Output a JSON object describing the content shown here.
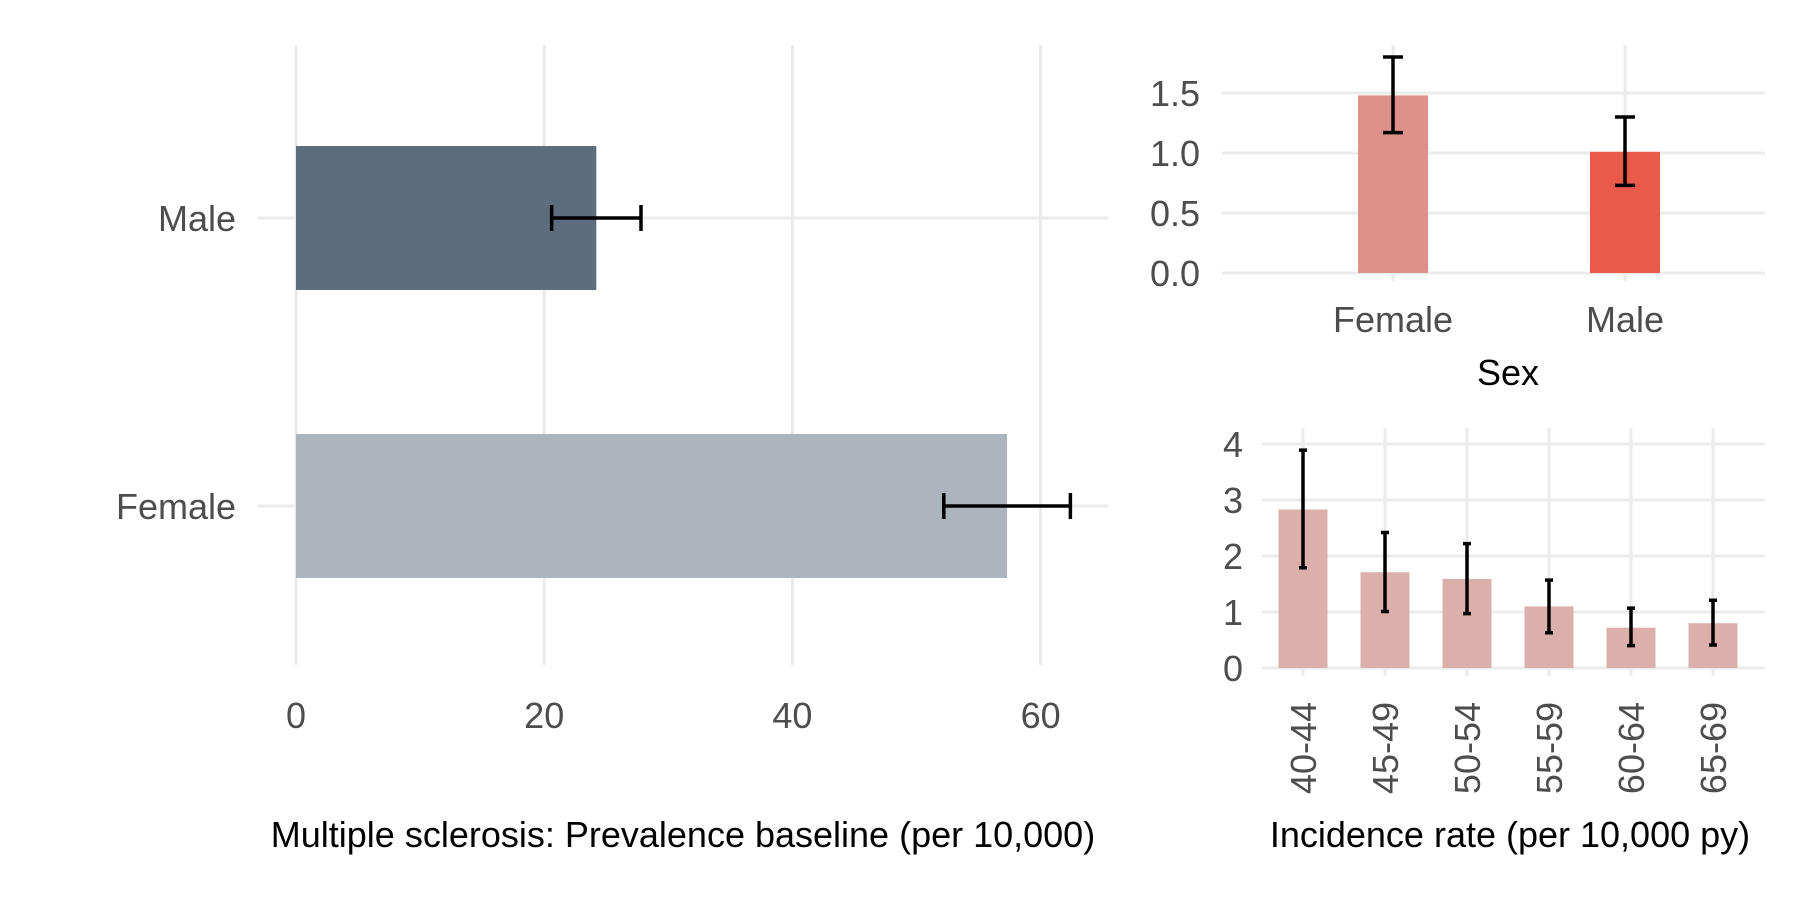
{
  "chart_data": [
    {
      "id": "prevalence",
      "type": "bar",
      "orientation": "horizontal",
      "categories": [
        "Male",
        "Female"
      ],
      "values": [
        24.2,
        57.3
      ],
      "error_low": [
        20.6,
        52.2
      ],
      "error_high": [
        27.8,
        62.4
      ],
      "colors": [
        "#5d6d7e",
        "#acb4bd"
      ],
      "xlabel": "Multiple sclerosis: Prevalence baseline (per 10,000)",
      "ylabel": "",
      "xlim": [
        0,
        65
      ],
      "xticks": [
        0,
        20,
        40,
        60
      ],
      "grid": true
    },
    {
      "id": "incidence_sex",
      "type": "bar",
      "orientation": "vertical",
      "categories": [
        "Female",
        "Male"
      ],
      "values": [
        1.48,
        1.01
      ],
      "error_low": [
        1.17,
        0.73
      ],
      "error_high": [
        1.8,
        1.3
      ],
      "colors": [
        "#dd918a",
        "#ea5a4b"
      ],
      "xlabel": "Sex",
      "ylabel": "",
      "ylim": [
        0,
        1.8
      ],
      "yticks": [
        0.0,
        0.5,
        1.0,
        1.5
      ],
      "ytick_labels": [
        "0.0",
        "0.5",
        "1.0",
        "1.5"
      ],
      "grid": true
    },
    {
      "id": "incidence_age",
      "type": "bar",
      "orientation": "vertical",
      "categories": [
        "40-44",
        "45-49",
        "50-54",
        "55-59",
        "60-64",
        "65-69"
      ],
      "values": [
        2.83,
        1.71,
        1.59,
        1.1,
        0.72,
        0.8
      ],
      "error_low": [
        1.79,
        1.01,
        0.97,
        0.63,
        0.4,
        0.41
      ],
      "error_high": [
        3.89,
        2.42,
        2.22,
        1.57,
        1.07,
        1.21
      ],
      "colors": [
        "#dcb0aa"
      ],
      "xlabel": "Incidence rate (per 10,000 py)",
      "ylabel": "",
      "ylim": [
        0,
        4.1
      ],
      "yticks": [
        0,
        1,
        2,
        3,
        4
      ],
      "ytick_labels": [
        "0",
        "1",
        "2",
        "3",
        "4"
      ],
      "grid": true
    }
  ]
}
